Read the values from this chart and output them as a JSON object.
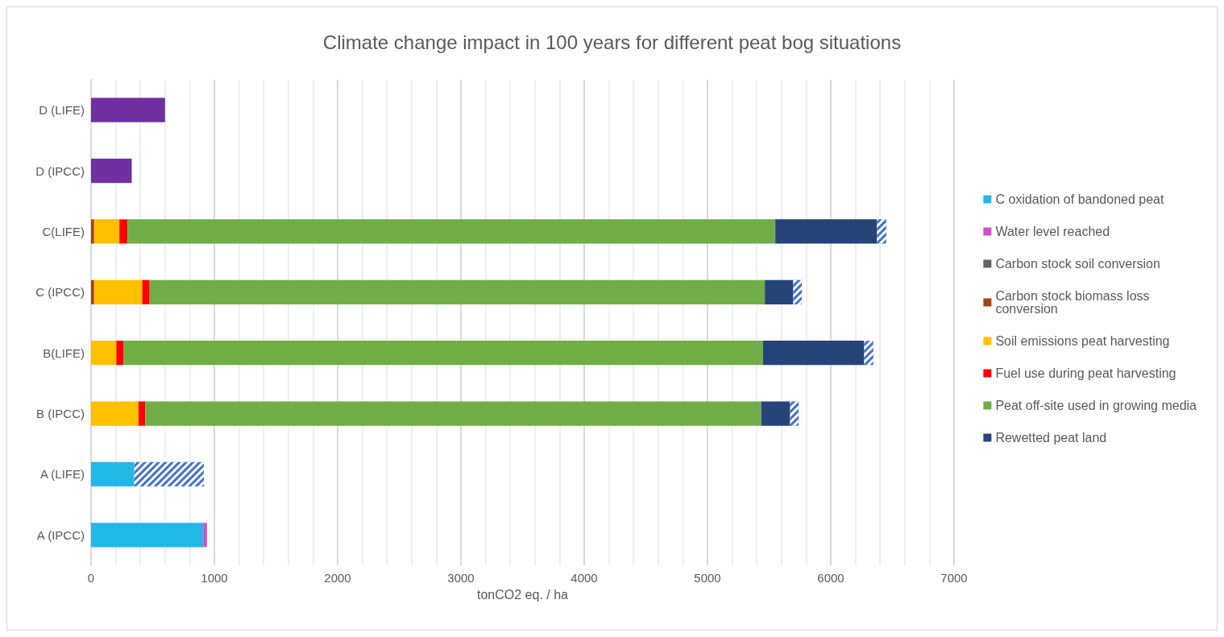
{
  "chart_data": {
    "type": "bar",
    "orientation": "horizontal",
    "stacked": true,
    "title": "Climate change impact in 100 years for different peat bog situations",
    "xlabel": "tonCO2 eq. / ha",
    "categories": [
      "D (LIFE)",
      "D (IPCC)",
      "C(LIFE)",
      "C (IPCC)",
      "B(LIFE)",
      "B (IPCC)",
      "A (LIFE)",
      "A (IPCC)"
    ],
    "series": [
      {
        "name": "C oxidation of bandoned peat",
        "color": "#22b8e6",
        "values": [
          null,
          null,
          null,
          null,
          null,
          null,
          350,
          910
        ]
      },
      {
        "name": "Water level reached",
        "color": "#cc4fc8",
        "values": [
          null,
          null,
          null,
          null,
          null,
          null,
          null,
          30
        ]
      },
      {
        "name": "Carbon stock soil conversion",
        "color": "#636363",
        "values": [
          null,
          null,
          null,
          null,
          null,
          null,
          null,
          null
        ]
      },
      {
        "name": "Carbon stock biomass loss conversion",
        "color": "#9e480e",
        "values": [
          null,
          null,
          25,
          25,
          null,
          null,
          null,
          null
        ]
      },
      {
        "name": "Soil emissions peat harvesting",
        "color": "#ffc000",
        "values": [
          null,
          null,
          205,
          390,
          205,
          385,
          null,
          null
        ]
      },
      {
        "name": "Fuel use during peat harvesting",
        "color": "#ff0000",
        "values": [
          null,
          null,
          65,
          60,
          60,
          55,
          null,
          null
        ]
      },
      {
        "name": "Peat off-site used in growing media",
        "color": "#70ad47",
        "values": [
          null,
          null,
          5255,
          4990,
          5185,
          4995,
          null,
          null
        ]
      },
      {
        "name": "Rewetted peat land",
        "color": "#264478",
        "values": [
          null,
          null,
          825,
          230,
          820,
          235,
          null,
          null
        ]
      },
      {
        "color": "#4472c4",
        "values": [
          null,
          null,
          75,
          70,
          75,
          70,
          565,
          null
        ]
      },
      {
        "color": "#7030a0",
        "values": [
          600,
          330,
          null,
          null,
          null,
          null,
          null,
          null
        ]
      }
    ],
    "xlim": [
      0,
      7000
    ],
    "xticks": [
      0,
      1000,
      2000,
      3000,
      4000,
      5000,
      6000,
      7000
    ],
    "grid": "x",
    "legend": "right"
  }
}
